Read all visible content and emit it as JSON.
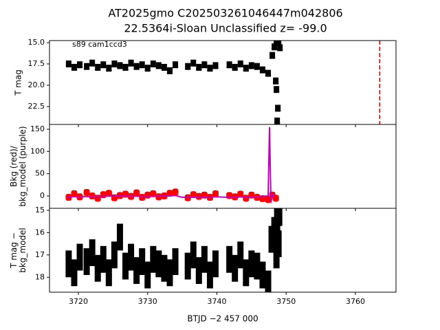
{
  "chart_data": [
    {
      "type": "scatter",
      "title": [
        "AT2025gmo  C202503261046447m042806",
        "22.5364i-Sloan Unclassified z= -99.0"
      ],
      "annotation": "s89 cam1ccd3",
      "ylabel": [
        "T mag"
      ],
      "xlim": [
        3715.83,
        3765.86
      ],
      "xticks": [
        3720,
        3730,
        3740,
        3750,
        3760
      ],
      "show_xticklabels": false,
      "ylim": [
        14.76,
        24.6
      ],
      "invert_y": true,
      "yticks": [
        {
          "value": 15,
          "label": "15.0"
        },
        17.5,
        {
          "value": 20,
          "label": "20.0"
        },
        22.5
      ],
      "vline": {
        "x": 3763.5,
        "color": "#e00000"
      },
      "series": [
        {
          "kind": "triangle",
          "color": "#000000",
          "x": [
            3718.6,
            3719.4,
            3720.2,
            3721.2,
            3722.0,
            3722.8,
            3723.6,
            3724.4,
            3725.2,
            3726.0,
            3726.8,
            3727.6,
            3728.4,
            3729.2,
            3730.0,
            3730.8,
            3731.6,
            3732.4,
            3733.2,
            3734.0,
            3735.8,
            3736.6,
            3737.4,
            3738.2,
            3739.0,
            3739.8,
            3741.8,
            3742.6,
            3743.4,
            3744.2,
            3745.0,
            3745.8,
            3746.6,
            3747.4,
            3748.0,
            3748.3,
            3748.6,
            3748.9,
            3749.1,
            3748.5,
            3748.6,
            3748.8,
            3748.7
          ],
          "values": [
            17.5,
            17.9,
            17.6,
            17.8,
            17.4,
            17.9,
            17.6,
            18.0,
            17.5,
            17.7,
            17.9,
            17.4,
            17.8,
            17.6,
            18.0,
            17.5,
            17.7,
            17.9,
            18.3,
            17.6,
            17.8,
            17.4,
            17.9,
            17.6,
            18.0,
            17.7,
            17.6,
            17.9,
            17.5,
            18.0,
            17.7,
            17.8,
            18.2,
            18.6,
            16.5,
            15.5,
            15.0,
            14.8,
            15.6,
            19.5,
            20.5,
            22.7,
            24.2
          ]
        }
      ]
    },
    {
      "type": "scatter",
      "ylabel": [
        "Bkg (red)/",
        "bkg_model (purple)"
      ],
      "xlim": [
        3715.83,
        3765.86
      ],
      "xticks": [
        3720,
        3730,
        3740,
        3750,
        3760
      ],
      "show_xticklabels": false,
      "ylim": [
        -27.8,
        160.8
      ],
      "invert_y": false,
      "yticks": [
        0,
        50,
        100,
        150
      ],
      "series": [
        {
          "kind": "dot",
          "color": "#ff0000",
          "x": [
            3718.6,
            3719.4,
            3720.2,
            3721.2,
            3722.0,
            3722.8,
            3723.6,
            3724.4,
            3725.2,
            3726.0,
            3726.8,
            3727.6,
            3728.4,
            3729.2,
            3730.0,
            3730.8,
            3731.6,
            3732.4,
            3733.2,
            3734.0,
            3735.8,
            3736.6,
            3737.4,
            3738.2,
            3739.0,
            3739.8,
            3741.8,
            3742.6,
            3743.4,
            3744.2,
            3745.0,
            3745.8,
            3746.6,
            3747.4,
            3748.0,
            3748.5
          ],
          "values": [
            -3,
            5,
            -2,
            8,
            0,
            -5,
            3,
            6,
            -4,
            1,
            4,
            -1,
            7,
            -3,
            2,
            5,
            -2,
            0,
            6,
            9,
            -4,
            3,
            -1,
            2,
            -3,
            5,
            1,
            -2,
            4,
            -5,
            2,
            -3,
            -6,
            -8,
            2,
            -5
          ]
        },
        {
          "kind": "line",
          "color": "#bf00bf",
          "x": [
            3718.4,
            3722,
            3726,
            3730,
            3734,
            3735,
            3740,
            3741.5,
            3745,
            3747.4,
            3747.6,
            3747.8,
            3748.0,
            3748.3
          ],
          "values": [
            -2,
            -1,
            0,
            -1,
            1,
            -3,
            -2,
            -3,
            -2,
            0,
            155,
            -15,
            3,
            -1
          ]
        }
      ]
    },
    {
      "type": "scatter",
      "ylabel": [
        "T mag −",
        "bkg_model"
      ],
      "xlabel": "BTJD −2 457 000",
      "xlim": [
        3715.83,
        3765.86
      ],
      "xticks": [
        3720,
        3730,
        3740,
        3750,
        3760
      ],
      "show_xticklabels": true,
      "ylim": [
        14.91,
        18.67
      ],
      "invert_y": true,
      "yticks": [
        15,
        16,
        17,
        18
      ],
      "series": [
        {
          "kind": "errorbar",
          "color": "#000000",
          "yerr": 0.6,
          "x": [
            3718.6,
            3719.4,
            3720.2,
            3721.2,
            3722.0,
            3722.8,
            3723.6,
            3724.4,
            3725.2,
            3726.0,
            3726.8,
            3727.6,
            3728.4,
            3729.2,
            3730.0,
            3730.8,
            3731.6,
            3732.4,
            3733.2,
            3734.0,
            3735.8,
            3736.6,
            3737.4,
            3738.2,
            3739.0,
            3739.8,
            3741.8,
            3742.6,
            3743.4,
            3744.2,
            3745.0,
            3745.8,
            3746.6,
            3747.4,
            3747.9,
            3748.3,
            3748.7,
            3749.0,
            3748.9,
            3748.6
          ],
          "values": [
            17.4,
            17.8,
            17.1,
            17.3,
            16.9,
            17.6,
            17.2,
            17.8,
            17.0,
            16.2,
            17.5,
            17.1,
            17.7,
            17.3,
            17.9,
            17.2,
            17.4,
            17.6,
            17.8,
            17.3,
            17.5,
            17.0,
            17.7,
            17.2,
            17.9,
            17.4,
            17.2,
            17.6,
            17.0,
            17.8,
            17.4,
            17.5,
            17.9,
            18.3,
            16.3,
            15.9,
            15.5,
            15.1,
            16.5,
            17.0
          ]
        }
      ]
    }
  ]
}
